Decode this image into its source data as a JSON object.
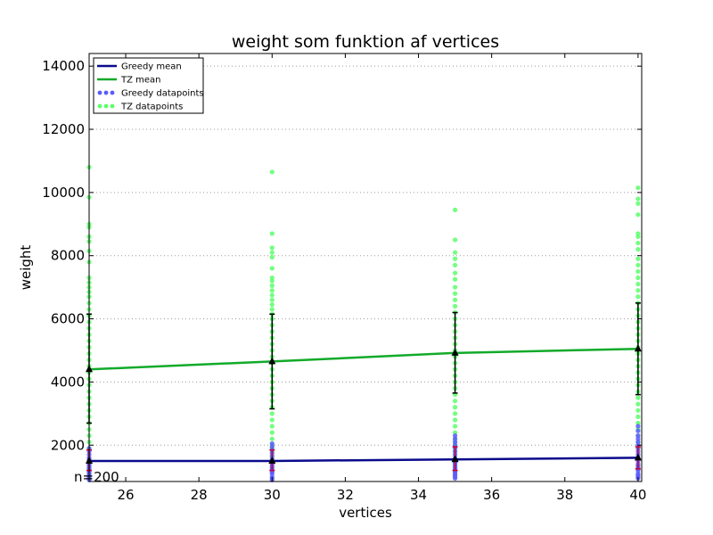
{
  "chart_data": {
    "type": "line",
    "title": "weight som funktion af vertices",
    "xlabel": "vertices",
    "ylabel": "weight",
    "xlim": [
      25,
      40.1
    ],
    "ylim": [
      850,
      14400
    ],
    "xticks": [
      26,
      28,
      30,
      32,
      34,
      36,
      38,
      40
    ],
    "yticks": [
      2000,
      4000,
      6000,
      8000,
      10000,
      12000,
      14000
    ],
    "ygrid": true,
    "legend_position": "top-left",
    "annotation": "n=200",
    "series": [
      {
        "name": "Greedy mean",
        "kind": "line",
        "color": "#0a0a8c",
        "x": [
          25,
          30,
          35,
          40
        ],
        "y": [
          1500,
          1500,
          1550,
          1600
        ],
        "error_low": [
          1200,
          1200,
          1200,
          1250
        ],
        "error_high": [
          1850,
          1850,
          1950,
          1950
        ]
      },
      {
        "name": "TZ mean",
        "kind": "line",
        "color": "#12aa2a",
        "x": [
          25,
          30,
          35,
          40
        ],
        "y": [
          4400,
          4650,
          4920,
          5050
        ],
        "error_low": [
          2700,
          3150,
          3650,
          3600
        ],
        "error_high": [
          6150,
          6150,
          6200,
          6500
        ]
      },
      {
        "name": "Greedy datapoints",
        "kind": "scatter",
        "color": "#5a5aff",
        "x": [
          25,
          25,
          25,
          25,
          25,
          25,
          25,
          25,
          25,
          25,
          25,
          25,
          25,
          25,
          25,
          25,
          25,
          25,
          30,
          30,
          30,
          30,
          30,
          30,
          30,
          30,
          30,
          30,
          30,
          30,
          30,
          30,
          30,
          30,
          30,
          30,
          35,
          35,
          35,
          35,
          35,
          35,
          35,
          35,
          35,
          35,
          35,
          35,
          35,
          35,
          35,
          35,
          35,
          35,
          35,
          35,
          40,
          40,
          40,
          40,
          40,
          40,
          40,
          40,
          40,
          40,
          40,
          40,
          40,
          40,
          40,
          40,
          40,
          40,
          40,
          40
        ],
        "y": [
          900,
          950,
          1000,
          1050,
          1100,
          1150,
          1200,
          1250,
          1300,
          1350,
          1400,
          1450,
          1500,
          1550,
          1600,
          1700,
          1800,
          1900,
          900,
          950,
          1000,
          1100,
          1150,
          1200,
          1250,
          1300,
          1350,
          1400,
          1450,
          1500,
          1550,
          1650,
          1750,
          1850,
          1950,
          2050,
          950,
          1000,
          1050,
          1100,
          1150,
          1200,
          1250,
          1300,
          1350,
          1400,
          1450,
          1500,
          1600,
          1700,
          1800,
          1900,
          2000,
          2100,
          2200,
          2300,
          950,
          1000,
          1050,
          1100,
          1200,
          1250,
          1300,
          1350,
          1400,
          1500,
          1600,
          1700,
          1800,
          1900,
          2000,
          2100,
          2200,
          2300,
          2450,
          2600
        ]
      },
      {
        "name": "TZ datapoints",
        "kind": "scatter",
        "color": "#5aff6a",
        "x": [
          25,
          25,
          25,
          25,
          25,
          25,
          25,
          25,
          25,
          25,
          25,
          25,
          25,
          25,
          25,
          25,
          25,
          25,
          25,
          25,
          25,
          25,
          25,
          25,
          25,
          25,
          25,
          25,
          25,
          25,
          25,
          25,
          25,
          25,
          25,
          25,
          25,
          30,
          30,
          30,
          30,
          30,
          30,
          30,
          30,
          30,
          30,
          30,
          30,
          30,
          30,
          30,
          30,
          30,
          30,
          30,
          30,
          30,
          30,
          30,
          30,
          30,
          30,
          30,
          30,
          30,
          30,
          30,
          30,
          30,
          30,
          30,
          30,
          30,
          30,
          30,
          30,
          35,
          35,
          35,
          35,
          35,
          35,
          35,
          35,
          35,
          35,
          35,
          35,
          35,
          35,
          35,
          35,
          35,
          35,
          35,
          35,
          35,
          35,
          35,
          35,
          35,
          35,
          35,
          35,
          35,
          35,
          35,
          35,
          35,
          35,
          35,
          35,
          40,
          40,
          40,
          40,
          40,
          40,
          40,
          40,
          40,
          40,
          40,
          40,
          40,
          40,
          40,
          40,
          40,
          40,
          40,
          40,
          40,
          40,
          40,
          40,
          40,
          40,
          40,
          40,
          40,
          40,
          40,
          40,
          40,
          40,
          40,
          40,
          40,
          40,
          40
        ],
        "y": [
          10800,
          9850,
          9000,
          8900,
          8600,
          8450,
          8150,
          7800,
          7300,
          7150,
          7000,
          6850,
          6700,
          6500,
          6300,
          6100,
          5900,
          5700,
          5500,
          5300,
          5100,
          4900,
          4700,
          4500,
          4300,
          4100,
          3900,
          3700,
          3500,
          3300,
          3100,
          2900,
          2700,
          2500,
          2300,
          2100,
          1900,
          10650,
          8700,
          8250,
          8100,
          7950,
          7600,
          7300,
          7200,
          7050,
          6900,
          6750,
          6600,
          6450,
          6300,
          6150,
          6000,
          5800,
          5600,
          5400,
          5200,
          5000,
          4800,
          4600,
          4400,
          4200,
          4000,
          3800,
          3600,
          3400,
          3200,
          3000,
          2800,
          2600,
          2400,
          2200,
          2000,
          1900,
          1800,
          1700,
          1600,
          9450,
          8500,
          8100,
          7900,
          7700,
          7450,
          7250,
          7000,
          6800,
          6600,
          6400,
          6200,
          6000,
          5800,
          5600,
          5400,
          5200,
          5000,
          4800,
          4600,
          4400,
          4200,
          4000,
          3800,
          3600,
          3400,
          3200,
          3000,
          2800,
          2600,
          2400,
          2200,
          2100,
          2000,
          1900,
          1800,
          10150,
          9800,
          9650,
          9300,
          8700,
          8600,
          8400,
          8200,
          7900,
          7700,
          7500,
          7300,
          7100,
          6900,
          6700,
          6500,
          6300,
          6100,
          5900,
          5700,
          5500,
          5300,
          5100,
          4900,
          4700,
          4500,
          4300,
          4100,
          3900,
          3700,
          3500,
          3300,
          3100,
          2900,
          2700,
          2500,
          2300,
          2100,
          1900
        ]
      }
    ],
    "legend": [
      {
        "label": "Greedy mean",
        "marker": "line",
        "color": "#0a0a8c"
      },
      {
        "label": "TZ mean",
        "marker": "line",
        "color": "#12aa2a"
      },
      {
        "label": "Greedy datapoints",
        "marker": "dots",
        "color": "#5a5aff"
      },
      {
        "label": "TZ datapoints",
        "marker": "dots",
        "color": "#5aff6a"
      }
    ]
  }
}
